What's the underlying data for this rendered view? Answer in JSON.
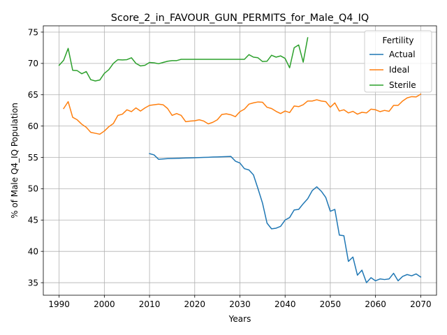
{
  "chart_data": {
    "type": "line",
    "title": "Score_2_in_FAVOUR_GUN_PERMITS_for_Male_Q4_IQ",
    "xlabel": "Years",
    "ylabel": "% of Male Q4_IQ Population",
    "xlim": [
      1986.5,
      2073.5
    ],
    "ylim": [
      33.0,
      76.0
    ],
    "xticks": [
      1990,
      2000,
      2010,
      2020,
      2030,
      2040,
      2050,
      2060,
      2070
    ],
    "yticks": [
      35,
      40,
      45,
      50,
      55,
      60,
      65,
      70,
      75
    ],
    "grid": true,
    "legend": {
      "title": "Fertility",
      "placement": "top-right"
    },
    "series": [
      {
        "name": "Actual",
        "color": "#1f77b4",
        "x": [
          2010,
          2011,
          2012,
          2013,
          2014,
          2015,
          2016,
          2017,
          2018,
          2019,
          2020,
          2021,
          2022,
          2023,
          2024,
          2025,
          2026,
          2027,
          2028,
          2029,
          2030,
          2031,
          2032,
          2033,
          2034,
          2035,
          2036,
          2037,
          2038,
          2039,
          2040,
          2041,
          2042,
          2043,
          2044,
          2045,
          2046,
          2047,
          2048,
          2049,
          2050,
          2051,
          2052,
          2053,
          2054,
          2055,
          2056,
          2057,
          2058,
          2059,
          2060,
          2061,
          2062,
          2063,
          2064,
          2065,
          2066,
          2067,
          2068,
          2069,
          2070
        ],
        "values": [
          55.6,
          55.4,
          54.7,
          54.75,
          54.8,
          54.82,
          54.85,
          54.87,
          54.9,
          54.92,
          54.95,
          54.97,
          55.0,
          55.02,
          55.05,
          55.07,
          55.1,
          55.12,
          55.15,
          54.4,
          54.1,
          53.2,
          53.0,
          52.2,
          50.0,
          47.7,
          44.5,
          43.6,
          43.7,
          44.0,
          45.0,
          45.4,
          46.6,
          46.7,
          47.6,
          48.4,
          49.7,
          50.3,
          49.6,
          48.6,
          46.4,
          46.7,
          42.6,
          42.5,
          38.4,
          39.1,
          36.2,
          37.0,
          35.0,
          35.8,
          35.3,
          35.6,
          35.5,
          35.6,
          36.5,
          35.3,
          36.0,
          36.3,
          36.1,
          36.4,
          35.9
        ]
      },
      {
        "name": "Ideal",
        "color": "#ff7f0e",
        "x": [
          1991,
          1992,
          1993,
          1994,
          1995,
          1996,
          1997,
          1998,
          1999,
          2000,
          2001,
          2002,
          2003,
          2004,
          2005,
          2006,
          2007,
          2008,
          2009,
          2010,
          2011,
          2012,
          2013,
          2014,
          2015,
          2016,
          2017,
          2018,
          2019,
          2020,
          2021,
          2022,
          2023,
          2024,
          2025,
          2026,
          2027,
          2028,
          2029,
          2030,
          2031,
          2032,
          2033,
          2034,
          2035,
          2036,
          2037,
          2038,
          2039,
          2040,
          2041,
          2042,
          2043,
          2044,
          2045,
          2046,
          2047,
          2048,
          2049,
          2050,
          2051,
          2052,
          2053,
          2054,
          2055,
          2056,
          2057,
          2058,
          2059,
          2060,
          2061,
          2062,
          2063,
          2064,
          2065,
          2066,
          2067,
          2068,
          2069,
          2070
        ],
        "values": [
          62.8,
          63.9,
          61.4,
          61.0,
          60.3,
          59.8,
          59.0,
          58.85,
          58.7,
          59.2,
          59.9,
          60.4,
          61.7,
          61.9,
          62.6,
          62.3,
          62.9,
          62.4,
          62.9,
          63.3,
          63.4,
          63.5,
          63.4,
          62.8,
          61.7,
          62.0,
          61.7,
          60.7,
          60.8,
          60.85,
          61.0,
          60.8,
          60.35,
          60.6,
          61.0,
          61.85,
          61.95,
          61.8,
          61.5,
          62.3,
          62.7,
          63.5,
          63.7,
          63.85,
          63.8,
          63.0,
          62.8,
          62.35,
          62.0,
          62.4,
          62.15,
          63.2,
          63.1,
          63.4,
          64.0,
          64.0,
          64.2,
          64.0,
          63.9,
          63.0,
          63.7,
          62.4,
          62.6,
          62.1,
          62.35,
          61.9,
          62.2,
          62.1,
          62.7,
          62.6,
          62.3,
          62.5,
          62.35,
          63.3,
          63.3,
          64.0,
          64.5,
          64.7,
          64.65,
          65.1
        ]
      },
      {
        "name": "Sterile",
        "color": "#2ca02c",
        "x": [
          1990,
          1991,
          1992,
          1993,
          1994,
          1995,
          1996,
          1997,
          1998,
          1999,
          2000,
          2001,
          2002,
          2003,
          2004,
          2005,
          2006,
          2007,
          2008,
          2009,
          2010,
          2011,
          2012,
          2013,
          2014,
          2015,
          2016,
          2017,
          2018,
          2019,
          2020,
          2021,
          2022,
          2023,
          2024,
          2025,
          2026,
          2027,
          2028,
          2029,
          2030,
          2031,
          2032,
          2033,
          2034,
          2035,
          2036,
          2037,
          2038,
          2039,
          2040,
          2041,
          2042,
          2043,
          2044,
          2045
        ],
        "values": [
          69.7,
          70.5,
          72.4,
          68.9,
          68.85,
          68.35,
          68.7,
          67.4,
          67.2,
          67.35,
          68.4,
          69.0,
          70.0,
          70.6,
          70.55,
          70.6,
          70.9,
          70.0,
          69.6,
          69.7,
          70.15,
          70.1,
          69.95,
          70.15,
          70.35,
          70.45,
          70.45,
          70.65,
          70.65,
          70.65,
          70.65,
          70.65,
          70.65,
          70.65,
          70.65,
          70.65,
          70.65,
          70.65,
          70.65,
          70.65,
          70.65,
          70.65,
          71.4,
          71.0,
          70.9,
          70.3,
          70.35,
          71.3,
          71.0,
          71.2,
          70.8,
          69.3,
          72.5,
          72.95,
          70.2,
          74.1
        ]
      }
    ]
  }
}
